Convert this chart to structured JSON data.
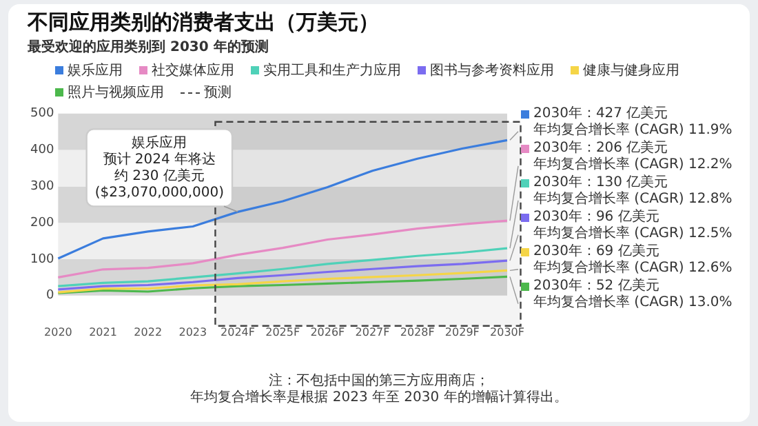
{
  "chart_data": {
    "type": "line",
    "title": "不同应用类别的消费者支出（万美元）",
    "subtitle": "最受欢迎的应用类别到 2030 年的预测",
    "categories": [
      "2020",
      "2021",
      "2022",
      "2023",
      "2024F",
      "2025F",
      "2026F",
      "2027F",
      "2028F",
      "2029F",
      "2030F"
    ],
    "series": [
      {
        "name": "娱乐应用",
        "color": "#3b7ddd",
        "values": [
          102,
          157,
          176,
          190,
          230,
          259,
          298,
          343,
          376,
          404,
          427
        ]
      },
      {
        "name": "社交媒体应用",
        "color": "#e68ac4",
        "values": [
          50,
          72,
          76,
          89,
          112,
          131,
          154,
          168,
          184,
          196,
          206
        ]
      },
      {
        "name": "实用工具和生产力应用",
        "color": "#4fd1b8",
        "values": [
          26,
          35,
          39,
          50,
          61,
          73,
          87,
          98,
          109,
          118,
          130
        ]
      },
      {
        "name": "图书与参考资料应用",
        "color": "#7b6cf0",
        "values": [
          17,
          26,
          29,
          37,
          48,
          56,
          65,
          73,
          81,
          87,
          96
        ]
      },
      {
        "name": "健康与健身应用",
        "color": "#f5d547",
        "values": [
          9,
          19,
          19,
          28,
          31,
          39,
          46,
          51,
          56,
          62,
          69
        ]
      },
      {
        "name": "照片与视频应用",
        "color": "#4cb84c",
        "values": [
          7,
          14,
          11,
          20,
          26,
          29,
          33,
          37,
          41,
          46,
          52
        ]
      }
    ],
    "ylim": [
      0,
      500
    ],
    "yticks": [
      0,
      100,
      200,
      300,
      400,
      500
    ],
    "legend": "top",
    "marker": "none",
    "line_style": "solid",
    "bands": [
      {
        "axis": "y",
        "from": 0,
        "to": 100,
        "color": "#d6d6d6"
      },
      {
        "axis": "y",
        "from": 100,
        "to": 200,
        "color": "#efefef"
      },
      {
        "axis": "y",
        "from": 200,
        "to": 300,
        "color": "#d6d6d6"
      },
      {
        "axis": "y",
        "from": 300,
        "to": 400,
        "color": "#efefef"
      },
      {
        "axis": "y",
        "from": 400,
        "to": 500,
        "color": "#d6d6d6"
      },
      {
        "axis": "x",
        "from": "2024F",
        "to": "2030F",
        "label": "预测",
        "color": "#444444"
      }
    ],
    "annotations": [
      "娱乐应用",
      "预计 2024 年将达",
      "约 230 亿美元",
      {
        "text": "($23,070,000,000)",
        "x": "2024F",
        "y": 230
      },
      "2030年：427 亿美元",
      {
        "text": "年均复合增长率 (CAGR) 11.9%",
        "x": "2030F",
        "y": 427
      },
      "2030年：206 亿美元",
      {
        "text": "年均复合增长率 (CAGR) 12.2%",
        "x": "2030F",
        "y": 206
      },
      "2030年：130 亿美元",
      {
        "text": "年均复合增长率 (CAGR) 12.8%",
        "x": "2030F",
        "y": 130
      },
      "2030年：96 亿美元",
      {
        "text": "年均复合增长率 (CAGR) 12.5%",
        "x": "2030F",
        "y": 96
      },
      "2030年：69 亿美元",
      {
        "text": "年均复合增长率 (CAGR) 12.6%",
        "x": "2030F",
        "y": 69
      },
      "2030年：52 亿美元",
      {
        "text": "年均复合增长率 (CAGR) 13.0%",
        "x": "2030F",
        "y": 52
      },
      "注：不包括中国的第三方应用商店；",
      "年均复合增长率是根据 2023 年至 2030 年的增幅计算得出。"
    ]
  }
}
